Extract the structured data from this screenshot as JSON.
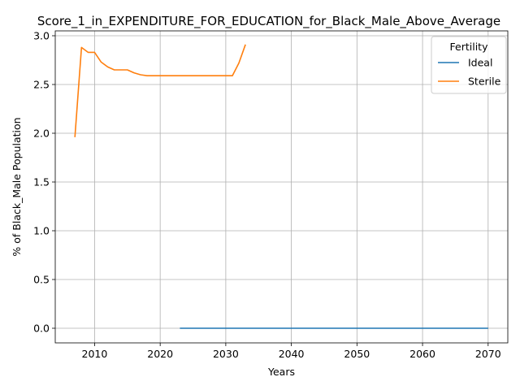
{
  "chart_data": {
    "type": "line",
    "title": "Score_1_in_EXPENDITURE_FOR_EDUCATION_for_Black_Male_Above_Average",
    "xlabel": "Years",
    "ylabel": "% of Black_Male Population",
    "xlim": [
      2004,
      2073
    ],
    "ylim": [
      -0.15,
      3.05
    ],
    "xticks": [
      2010,
      2020,
      2030,
      2040,
      2050,
      2060,
      2070
    ],
    "xtick_labels": [
      "2010",
      "2020",
      "2030",
      "2040",
      "2050",
      "2060",
      "2070"
    ],
    "yticks": [
      0.0,
      0.5,
      1.0,
      1.5,
      2.0,
      2.5,
      3.0
    ],
    "ytick_labels": [
      "0.0",
      "0.5",
      "1.0",
      "1.5",
      "2.0",
      "2.5",
      "3.0"
    ],
    "grid": true,
    "legend": {
      "title": "Fertility",
      "placement": "top-right"
    },
    "series": [
      {
        "name": "Ideal",
        "color": "#1f77b4",
        "x": [
          2023,
          2030,
          2040,
          2050,
          2060,
          2070
        ],
        "values": [
          0.0,
          0.0,
          0.0,
          0.0,
          0.0,
          0.0
        ]
      },
      {
        "name": "Sterile",
        "color": "#ff7f0e",
        "x": [
          2007,
          2008,
          2009,
          2010,
          2011,
          2012,
          2013,
          2014,
          2015,
          2016,
          2017,
          2018,
          2019,
          2020,
          2021,
          2022,
          2023,
          2024,
          2025,
          2026,
          2027,
          2028,
          2029,
          2030,
          2031,
          2032,
          2033
        ],
        "values": [
          1.96,
          2.88,
          2.83,
          2.83,
          2.73,
          2.68,
          2.65,
          2.65,
          2.65,
          2.62,
          2.6,
          2.59,
          2.59,
          2.59,
          2.59,
          2.59,
          2.59,
          2.59,
          2.59,
          2.59,
          2.59,
          2.59,
          2.59,
          2.59,
          2.59,
          2.72,
          2.91
        ]
      }
    ]
  }
}
